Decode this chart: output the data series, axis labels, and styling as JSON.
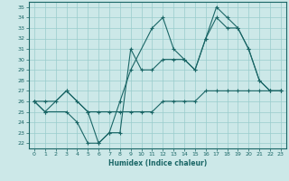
{
  "xlabel": "Humidex (Indice chaleur)",
  "ylabel": "",
  "xlim": [
    -0.5,
    23.5
  ],
  "ylim": [
    21.5,
    35.5
  ],
  "yticks": [
    22,
    23,
    24,
    25,
    26,
    27,
    28,
    29,
    30,
    31,
    32,
    33,
    34,
    35
  ],
  "xticks": [
    0,
    1,
    2,
    3,
    4,
    5,
    6,
    7,
    8,
    9,
    10,
    11,
    12,
    13,
    14,
    15,
    16,
    17,
    18,
    19,
    20,
    21,
    22,
    23
  ],
  "background_color": "#cce8e8",
  "grid_color": "#99cccc",
  "line_color": "#1a6666",
  "line1_x": [
    0,
    1,
    3,
    5,
    6,
    7,
    8,
    9,
    11,
    12,
    13,
    14,
    15,
    16,
    17,
    18,
    19,
    20,
    21,
    22,
    23
  ],
  "line1_y": [
    26,
    25,
    27,
    25,
    22,
    23,
    26,
    29,
    33,
    34,
    31,
    30,
    29,
    32,
    35,
    34,
    33,
    31,
    28,
    27,
    27
  ],
  "line2_x": [
    0,
    1,
    3,
    4,
    5,
    6,
    7,
    8,
    9,
    10,
    11,
    12,
    13,
    14,
    15,
    16,
    17,
    18,
    19,
    20,
    21,
    22,
    23
  ],
  "line2_y": [
    26,
    25,
    25,
    24,
    22,
    22,
    23,
    23,
    31,
    29,
    29,
    30,
    30,
    30,
    29,
    32,
    34,
    33,
    33,
    31,
    28,
    27,
    27
  ],
  "line3_x": [
    0,
    1,
    2,
    3,
    4,
    5,
    6,
    7,
    8,
    9,
    10,
    11,
    12,
    13,
    14,
    15,
    16,
    17,
    18,
    19,
    20,
    21,
    22,
    23
  ],
  "line3_y": [
    26,
    26,
    26,
    27,
    26,
    25,
    25,
    25,
    25,
    25,
    25,
    25,
    26,
    26,
    26,
    26,
    27,
    27,
    27,
    27,
    27,
    27,
    27,
    27
  ]
}
